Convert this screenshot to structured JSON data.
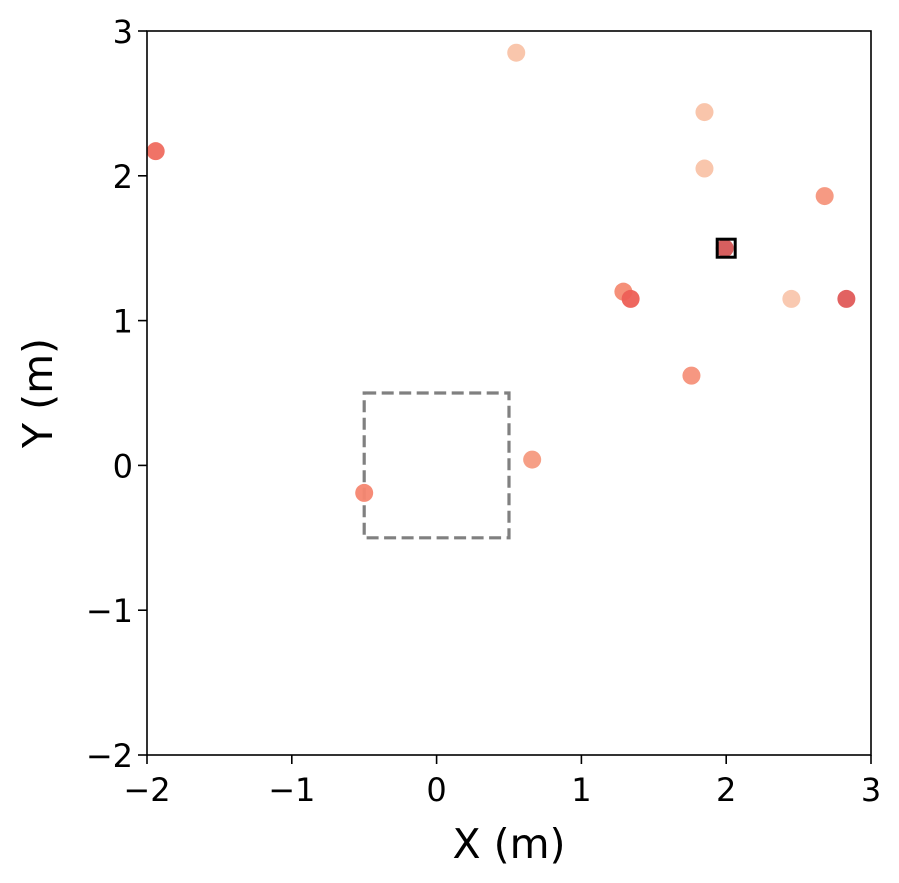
{
  "chart_data": {
    "type": "scatter",
    "title": "",
    "xlabel": "X (m)",
    "ylabel": "Y (m)",
    "xlim": [
      -2,
      3
    ],
    "ylim": [
      -2,
      3
    ],
    "xticks": [
      -2,
      -1,
      0,
      1,
      2,
      3
    ],
    "yticks": [
      -2,
      -1,
      0,
      1,
      2,
      3
    ],
    "xtick_labels": [
      "−2",
      "−1",
      "0",
      "1",
      "2",
      "3"
    ],
    "ytick_labels": [
      "−2",
      "−1",
      "0",
      "1",
      "2",
      "3"
    ],
    "grid": false,
    "points": [
      {
        "x": -1.94,
        "y": 2.17,
        "color": "#ef6b5f"
      },
      {
        "x": 0.55,
        "y": 2.85,
        "color": "#f9c3a8"
      },
      {
        "x": 1.85,
        "y": 2.44,
        "color": "#f9c2a6"
      },
      {
        "x": 1.85,
        "y": 2.05,
        "color": "#f9c3a8"
      },
      {
        "x": 2.68,
        "y": 1.86,
        "color": "#f6957c"
      },
      {
        "x": 1.99,
        "y": 1.5,
        "color": "#d55656"
      },
      {
        "x": 1.29,
        "y": 1.2,
        "color": "#f48a72"
      },
      {
        "x": 1.34,
        "y": 1.15,
        "color": "#ed5f56"
      },
      {
        "x": 2.45,
        "y": 1.15,
        "color": "#f9c6ad"
      },
      {
        "x": 2.83,
        "y": 1.15,
        "color": "#e05a58"
      },
      {
        "x": 1.76,
        "y": 0.62,
        "color": "#f5917a"
      },
      {
        "x": 0.66,
        "y": 0.04,
        "color": "#f69a80"
      },
      {
        "x": -0.5,
        "y": -0.19,
        "color": "#f58670"
      }
    ],
    "target_marker": {
      "x": 2.0,
      "y": 1.5,
      "shape": "square",
      "color": "#000000"
    },
    "region": {
      "x_min": -0.5,
      "x_max": 0.5,
      "y_min": -0.5,
      "y_max": 0.5,
      "style": "dashed",
      "color": "#808080"
    }
  }
}
